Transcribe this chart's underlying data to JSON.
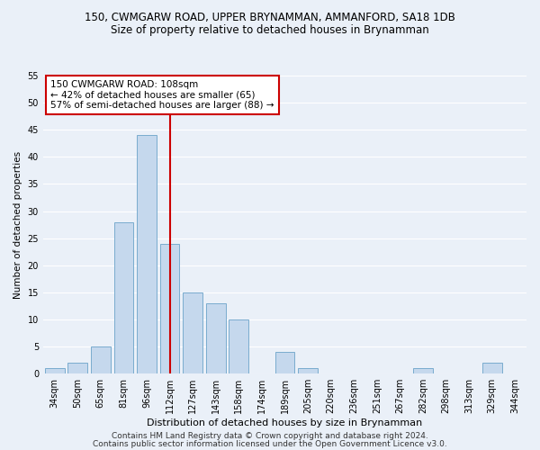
{
  "title1": "150, CWMGARW ROAD, UPPER BRYNAMMAN, AMMANFORD, SA18 1DB",
  "title2": "Size of property relative to detached houses in Brynamman",
  "xlabel": "Distribution of detached houses by size in Brynamman",
  "ylabel": "Number of detached properties",
  "categories": [
    "34sqm",
    "50sqm",
    "65sqm",
    "81sqm",
    "96sqm",
    "112sqm",
    "127sqm",
    "143sqm",
    "158sqm",
    "174sqm",
    "189sqm",
    "205sqm",
    "220sqm",
    "236sqm",
    "251sqm",
    "267sqm",
    "282sqm",
    "298sqm",
    "313sqm",
    "329sqm",
    "344sqm"
  ],
  "values": [
    1,
    2,
    5,
    28,
    44,
    24,
    15,
    13,
    10,
    0,
    4,
    1,
    0,
    0,
    0,
    0,
    1,
    0,
    0,
    2,
    0
  ],
  "bar_color": "#c5d8ed",
  "bar_edge_color": "#7aacce",
  "ylim": [
    0,
    55
  ],
  "yticks": [
    0,
    5,
    10,
    15,
    20,
    25,
    30,
    35,
    40,
    45,
    50,
    55
  ],
  "vline_x_index": 5,
  "vline_color": "#cc0000",
  "annotation_lines": [
    "150 CWMGARW ROAD: 108sqm",
    "← 42% of detached houses are smaller (65)",
    "57% of semi-detached houses are larger (88) →"
  ],
  "annotation_box_color": "#cc0000",
  "footnote1": "Contains HM Land Registry data © Crown copyright and database right 2024.",
  "footnote2": "Contains public sector information licensed under the Open Government Licence v3.0.",
  "bg_color": "#eaf0f8",
  "plot_bg_color": "#eaf0f8",
  "grid_color": "#ffffff",
  "title1_fontsize": 8.5,
  "title2_fontsize": 8.5,
  "xlabel_fontsize": 8.0,
  "ylabel_fontsize": 7.5,
  "tick_fontsize": 7.0,
  "annotation_fontsize": 7.5,
  "footnote_fontsize": 6.5
}
